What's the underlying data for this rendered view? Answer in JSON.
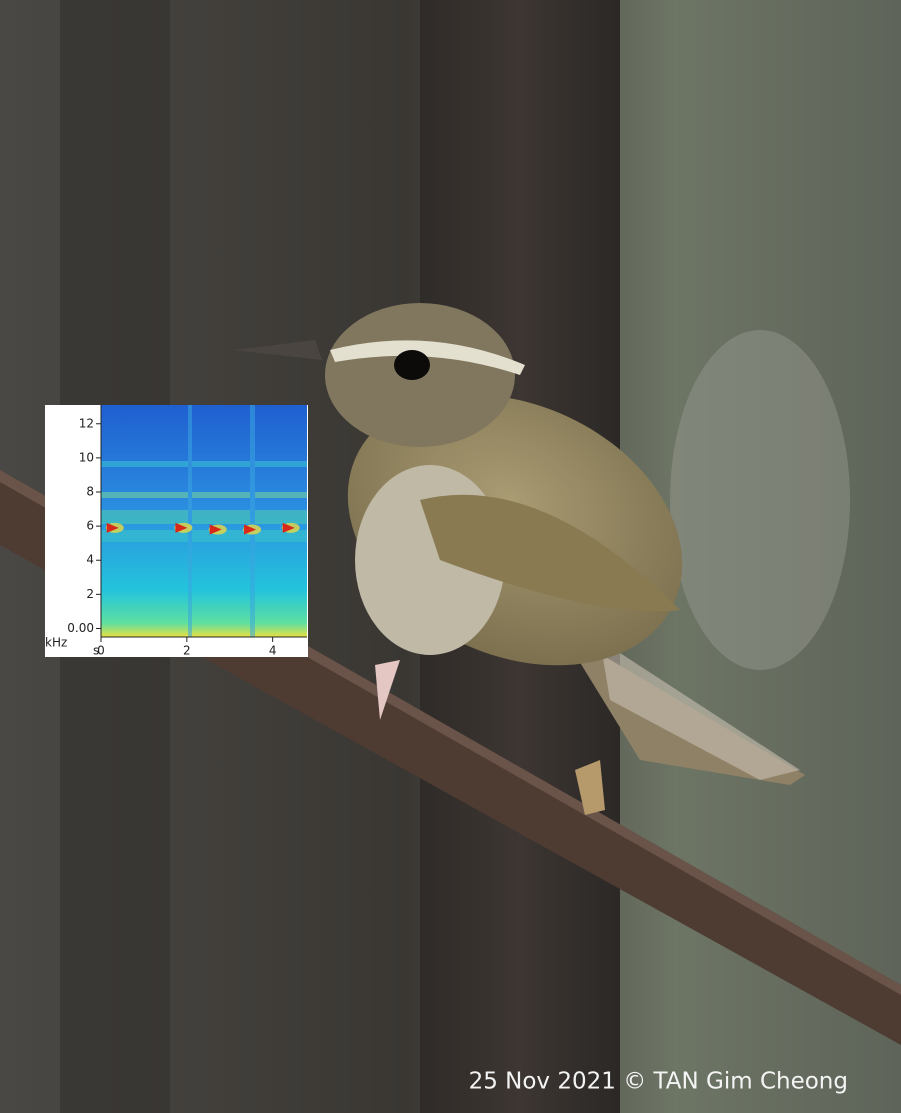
{
  "caption": "25 Nov 2021 © TAN Gim Cheong",
  "chart_data": {
    "type": "scatter",
    "x_label": "s",
    "y_label": "kHz",
    "x": [
      0.25,
      1.85,
      2.65,
      3.45,
      4.35
    ],
    "values": [
      5.9,
      5.9,
      5.8,
      5.8,
      5.9
    ],
    "color": "#d8281a",
    "xlim": [
      0,
      4.8
    ],
    "ylim": [
      -0.5,
      13.1
    ],
    "xticks": [
      0,
      2,
      4
    ],
    "yticks": [
      {
        "value": 0,
        "label": "0.00"
      },
      2,
      4,
      6,
      8,
      10,
      12
    ]
  }
}
